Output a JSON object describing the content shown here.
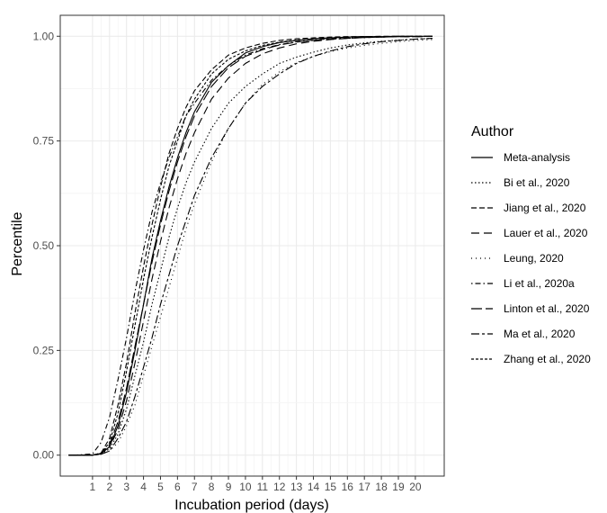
{
  "chart_data": {
    "type": "line",
    "title": "",
    "xlabel": "Incubation period (days)",
    "ylabel": "Percentile",
    "xlim": [
      -0.9,
      21.7
    ],
    "ylim": [
      -0.05,
      1.05
    ],
    "x_ticks": [
      1,
      2,
      3,
      4,
      5,
      6,
      7,
      8,
      9,
      10,
      11,
      12,
      13,
      14,
      15,
      16,
      17,
      18,
      19,
      20
    ],
    "y_ticks": [
      0.0,
      0.25,
      0.5,
      0.75,
      1.0
    ],
    "y_tick_labels": [
      "0.00",
      "0.25",
      "0.50",
      "0.75",
      "1.00"
    ],
    "grid": true,
    "x_minor_grid": true,
    "legend": {
      "title": "Author",
      "placement": "right"
    },
    "x": [
      0,
      1,
      1.5,
      2,
      2.5,
      3,
      3.5,
      4,
      4.5,
      5,
      5.5,
      6,
      6.5,
      7,
      8,
      9,
      10,
      11,
      12,
      13,
      14,
      15,
      16,
      17,
      18,
      19,
      20,
      21
    ],
    "series": [
      {
        "name": "Meta-analysis",
        "dash": "solid",
        "values": [
          0,
          0,
          0.003,
          0.02,
          0.07,
          0.15,
          0.25,
          0.36,
          0.47,
          0.56,
          0.64,
          0.71,
          0.77,
          0.82,
          0.89,
          0.93,
          0.96,
          0.975,
          0.985,
          0.99,
          0.994,
          0.996,
          0.998,
          0.999,
          0.999,
          1.0,
          1.0,
          1.0
        ]
      },
      {
        "name": "Bi et al., 2020",
        "dash": "dot",
        "values": [
          0,
          0,
          0.003,
          0.015,
          0.05,
          0.11,
          0.19,
          0.27,
          0.36,
          0.44,
          0.52,
          0.59,
          0.65,
          0.7,
          0.78,
          0.84,
          0.88,
          0.91,
          0.935,
          0.95,
          0.962,
          0.972,
          0.979,
          0.984,
          0.988,
          0.991,
          0.993,
          0.995
        ]
      },
      {
        "name": "Jiang et al., 2020",
        "dash": "dash",
        "values": [
          0,
          0,
          0.005,
          0.04,
          0.12,
          0.22,
          0.34,
          0.45,
          0.55,
          0.64,
          0.72,
          0.78,
          0.83,
          0.87,
          0.92,
          0.955,
          0.972,
          0.983,
          0.99,
          0.994,
          0.996,
          0.998,
          0.999,
          0.999,
          1.0,
          1.0,
          1.0,
          1.0
        ]
      },
      {
        "name": "Lauer et al., 2020",
        "dash": "longdash",
        "values": [
          0,
          0,
          0.004,
          0.02,
          0.06,
          0.13,
          0.22,
          0.32,
          0.42,
          0.51,
          0.59,
          0.66,
          0.72,
          0.77,
          0.85,
          0.9,
          0.935,
          0.958,
          0.972,
          0.982,
          0.988,
          0.992,
          0.995,
          0.997,
          0.998,
          0.999,
          0.999,
          1.0
        ]
      },
      {
        "name": "Leung, 2020",
        "dash": "dotted",
        "values": [
          0,
          0,
          0.002,
          0.01,
          0.03,
          0.07,
          0.12,
          0.19,
          0.26,
          0.33,
          0.4,
          0.47,
          0.54,
          0.6,
          0.7,
          0.78,
          0.84,
          0.885,
          0.915,
          0.937,
          0.952,
          0.963,
          0.972,
          0.978,
          0.983,
          0.987,
          0.99,
          0.992
        ]
      },
      {
        "name": "Li et al., 2020a",
        "dash": "dotdash",
        "values": [
          0,
          0.003,
          0.03,
          0.09,
          0.18,
          0.28,
          0.39,
          0.49,
          0.58,
          0.65,
          0.71,
          0.76,
          0.81,
          0.84,
          0.895,
          0.93,
          0.955,
          0.97,
          0.98,
          0.987,
          0.991,
          0.994,
          0.996,
          0.997,
          0.998,
          0.999,
          0.999,
          1.0
        ]
      },
      {
        "name": "Linton et al., 2020",
        "dash": "longdash2",
        "values": [
          0,
          0,
          0.004,
          0.025,
          0.08,
          0.16,
          0.26,
          0.36,
          0.46,
          0.55,
          0.63,
          0.7,
          0.76,
          0.81,
          0.88,
          0.925,
          0.952,
          0.968,
          0.979,
          0.986,
          0.99,
          0.993,
          0.995,
          0.997,
          0.998,
          0.999,
          0.999,
          1.0
        ]
      },
      {
        "name": "Ma et al., 2020",
        "dash": "twodash",
        "values": [
          0,
          0,
          0.002,
          0.01,
          0.04,
          0.08,
          0.14,
          0.21,
          0.28,
          0.36,
          0.43,
          0.5,
          0.56,
          0.62,
          0.71,
          0.78,
          0.84,
          0.88,
          0.91,
          0.935,
          0.952,
          0.965,
          0.975,
          0.982,
          0.987,
          0.99,
          0.993,
          0.995
        ]
      },
      {
        "name": "Zhang et al., 2020",
        "dash": "shortdash",
        "values": [
          0,
          0,
          0.005,
          0.03,
          0.1,
          0.2,
          0.31,
          0.42,
          0.52,
          0.61,
          0.69,
          0.75,
          0.81,
          0.85,
          0.91,
          0.945,
          0.965,
          0.978,
          0.986,
          0.991,
          0.994,
          0.996,
          0.998,
          0.999,
          0.999,
          1.0,
          1.0,
          1.0
        ]
      }
    ]
  }
}
